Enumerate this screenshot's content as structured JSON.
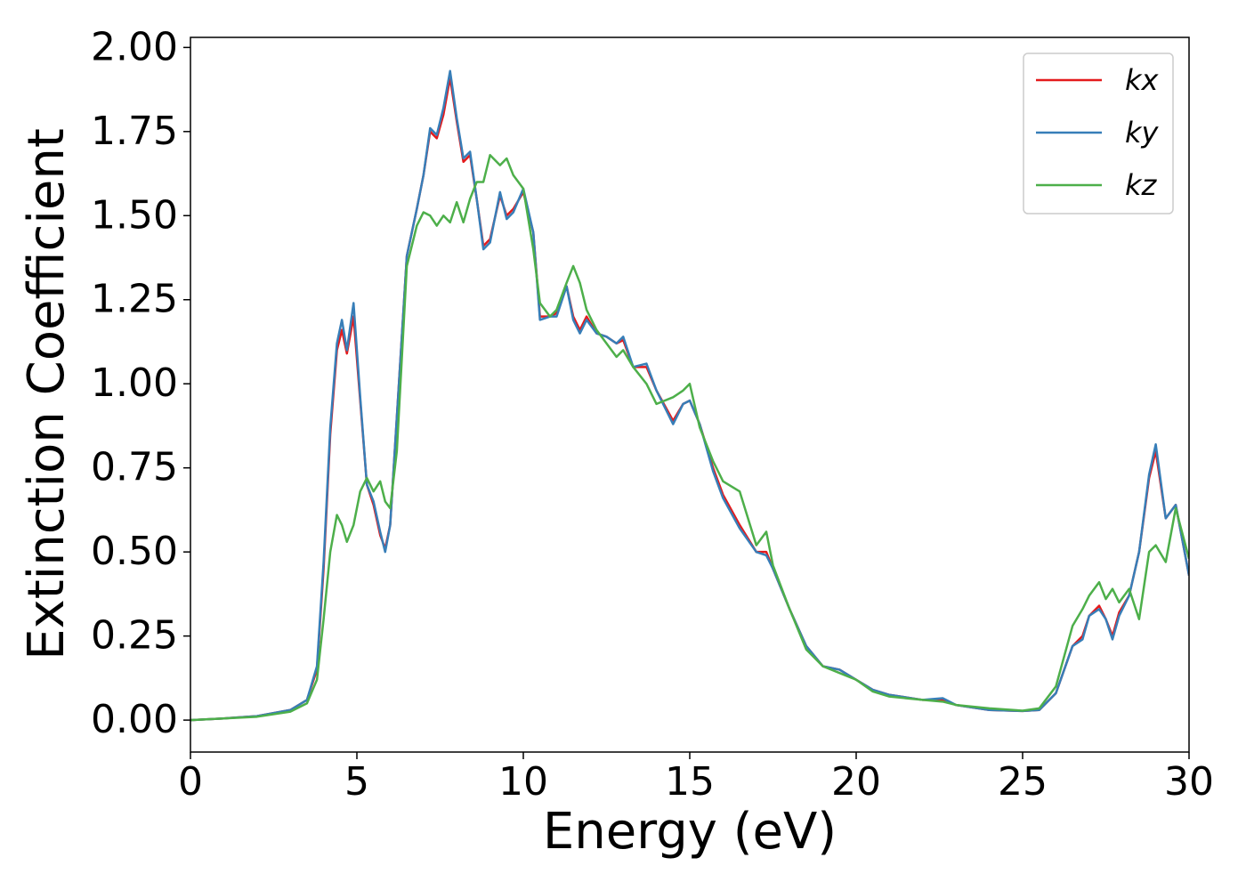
{
  "chart_data": {
    "type": "line",
    "xlabel": "Energy (eV)",
    "ylabel": "Extinction Coefficient",
    "xlim": [
      0,
      30
    ],
    "ylim": [
      -0.095,
      2.03
    ],
    "xticks": [
      0,
      5,
      10,
      15,
      20,
      25,
      30
    ],
    "yticks": [
      {
        "value": 0,
        "label": "0.00"
      },
      {
        "value": 0.25,
        "label": "0.25"
      },
      {
        "value": 0.5,
        "label": "0.50"
      },
      {
        "value": 0.75,
        "label": "0.75"
      },
      {
        "value": 1,
        "label": "1.00"
      },
      {
        "value": 1.25,
        "label": "1.25"
      },
      {
        "value": 1.5,
        "label": "1.50"
      },
      {
        "value": 1.75,
        "label": "1.75"
      },
      {
        "value": 2,
        "label": "2.00"
      }
    ],
    "grid": false,
    "legend": "upper right",
    "x": [
      0,
      1,
      2,
      3,
      3.5,
      3.8,
      4.0,
      4.2,
      4.4,
      4.55,
      4.7,
      4.9,
      5.1,
      5.3,
      5.5,
      5.7,
      5.85,
      6.0,
      6.2,
      6.5,
      6.8,
      7.0,
      7.2,
      7.4,
      7.6,
      7.8,
      8.0,
      8.2,
      8.4,
      8.6,
      8.8,
      9.0,
      9.3,
      9.5,
      9.7,
      10.0,
      10.3,
      10.5,
      10.8,
      11.0,
      11.3,
      11.5,
      11.7,
      11.9,
      12.2,
      12.5,
      12.8,
      13.0,
      13.3,
      13.7,
      14.0,
      14.5,
      14.8,
      15.0,
      15.3,
      15.7,
      16.0,
      16.5,
      17.0,
      17.3,
      17.5,
      18.0,
      18.5,
      19.0,
      19.5,
      20.0,
      20.5,
      21.0,
      22.0,
      22.6,
      23.0,
      24.0,
      25.0,
      25.5,
      26.0,
      26.5,
      26.8,
      27.0,
      27.3,
      27.5,
      27.7,
      27.9,
      28.2,
      28.5,
      28.8,
      29.0,
      29.3,
      29.6,
      30.0
    ],
    "series": [
      {
        "name": "kx",
        "color": "#e41a1c",
        "values": [
          0,
          0.005,
          0.012,
          0.03,
          0.06,
          0.15,
          0.45,
          0.85,
          1.1,
          1.16,
          1.09,
          1.2,
          0.95,
          0.7,
          0.64,
          0.55,
          0.51,
          0.58,
          0.9,
          1.38,
          1.52,
          1.62,
          1.75,
          1.73,
          1.8,
          1.91,
          1.78,
          1.66,
          1.68,
          1.55,
          1.41,
          1.43,
          1.56,
          1.5,
          1.52,
          1.57,
          1.45,
          1.2,
          1.2,
          1.21,
          1.29,
          1.2,
          1.16,
          1.2,
          1.15,
          1.14,
          1.12,
          1.13,
          1.05,
          1.05,
          0.98,
          0.89,
          0.94,
          0.95,
          0.88,
          0.75,
          0.67,
          0.58,
          0.5,
          0.5,
          0.45,
          0.33,
          0.22,
          0.16,
          0.15,
          0.12,
          0.09,
          0.075,
          0.06,
          0.06,
          0.045,
          0.03,
          0.027,
          0.03,
          0.08,
          0.22,
          0.25,
          0.31,
          0.34,
          0.3,
          0.25,
          0.32,
          0.37,
          0.5,
          0.72,
          0.8,
          0.6,
          0.64,
          0.43
        ]
      },
      {
        "name": "ky",
        "color": "#377eb8",
        "values": [
          0,
          0.005,
          0.012,
          0.03,
          0.06,
          0.16,
          0.47,
          0.87,
          1.12,
          1.19,
          1.1,
          1.24,
          0.96,
          0.7,
          0.65,
          0.56,
          0.5,
          0.58,
          0.9,
          1.38,
          1.52,
          1.62,
          1.76,
          1.74,
          1.82,
          1.93,
          1.79,
          1.67,
          1.69,
          1.55,
          1.4,
          1.42,
          1.57,
          1.49,
          1.51,
          1.58,
          1.45,
          1.19,
          1.2,
          1.2,
          1.29,
          1.19,
          1.15,
          1.19,
          1.15,
          1.14,
          1.12,
          1.14,
          1.05,
          1.06,
          0.98,
          0.88,
          0.94,
          0.95,
          0.88,
          0.74,
          0.66,
          0.57,
          0.5,
          0.49,
          0.45,
          0.33,
          0.22,
          0.16,
          0.15,
          0.12,
          0.09,
          0.075,
          0.06,
          0.065,
          0.045,
          0.03,
          0.027,
          0.03,
          0.08,
          0.22,
          0.24,
          0.31,
          0.33,
          0.3,
          0.24,
          0.31,
          0.37,
          0.5,
          0.73,
          0.82,
          0.6,
          0.64,
          0.43
        ]
      },
      {
        "name": "kz",
        "color": "#4daf4a",
        "values": [
          0,
          0.005,
          0.01,
          0.025,
          0.05,
          0.12,
          0.3,
          0.5,
          0.61,
          0.58,
          0.53,
          0.58,
          0.68,
          0.72,
          0.68,
          0.71,
          0.65,
          0.63,
          0.8,
          1.35,
          1.47,
          1.51,
          1.5,
          1.47,
          1.5,
          1.48,
          1.54,
          1.48,
          1.55,
          1.6,
          1.6,
          1.68,
          1.65,
          1.67,
          1.62,
          1.58,
          1.4,
          1.24,
          1.2,
          1.22,
          1.3,
          1.35,
          1.3,
          1.22,
          1.16,
          1.12,
          1.08,
          1.1,
          1.05,
          1.0,
          0.94,
          0.96,
          0.98,
          1.0,
          0.87,
          0.77,
          0.71,
          0.68,
          0.52,
          0.56,
          0.46,
          0.33,
          0.21,
          0.16,
          0.14,
          0.12,
          0.085,
          0.07,
          0.06,
          0.055,
          0.045,
          0.035,
          0.028,
          0.035,
          0.1,
          0.28,
          0.33,
          0.37,
          0.41,
          0.36,
          0.39,
          0.35,
          0.39,
          0.3,
          0.5,
          0.52,
          0.47,
          0.63,
          0.48
        ]
      }
    ]
  }
}
